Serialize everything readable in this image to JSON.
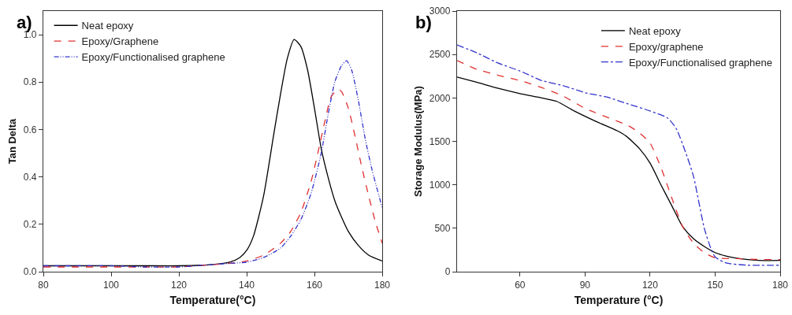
{
  "chart_data": [
    {
      "type": "line",
      "title": "a)",
      "xlabel": "Temperature(°C)",
      "ylabel": "Tan Delta",
      "xlim": [
        80,
        180
      ],
      "xticks": [
        80,
        100,
        120,
        140,
        160,
        180
      ],
      "ylim": [
        0,
        1.1
      ],
      "yticks": [
        {
          "value": 0,
          "label": "0.0"
        },
        {
          "value": 0.2,
          "label": "0.2"
        },
        {
          "value": 0.4,
          "label": "0.4"
        },
        {
          "value": 0.6,
          "label": "0.6"
        },
        {
          "value": 0.8,
          "label": "0.8"
        },
        {
          "value": 1.0,
          "label": "1.0"
        }
      ],
      "grid": false,
      "legend": "top left",
      "series": [
        {
          "name": "Neat epoxy",
          "color": "#000000",
          "line_style": "solid",
          "x": [
            80,
            90,
            100,
            110,
            120,
            130,
            135,
            138,
            140,
            142,
            145,
            148,
            150,
            152,
            154,
            156,
            158,
            160,
            162,
            164,
            166,
            168,
            170,
            173,
            176,
            180
          ],
          "values": [
            0.025,
            0.025,
            0.025,
            0.025,
            0.025,
            0.03,
            0.04,
            0.06,
            0.09,
            0.15,
            0.32,
            0.58,
            0.75,
            0.9,
            0.98,
            0.95,
            0.85,
            0.69,
            0.52,
            0.4,
            0.3,
            0.23,
            0.17,
            0.11,
            0.07,
            0.045
          ]
        },
        {
          "name": "Epoxy/Graphene",
          "color": "#e03030",
          "line_style": "dashed",
          "x": [
            80,
            90,
            100,
            110,
            120,
            130,
            135,
            140,
            145,
            150,
            153,
            156,
            159,
            161,
            163,
            165,
            167,
            168,
            170,
            172,
            174,
            176,
            178,
            180
          ],
          "values": [
            0.02,
            0.02,
            0.02,
            0.02,
            0.02,
            0.03,
            0.035,
            0.045,
            0.07,
            0.12,
            0.17,
            0.25,
            0.38,
            0.5,
            0.63,
            0.74,
            0.77,
            0.76,
            0.69,
            0.57,
            0.44,
            0.32,
            0.21,
            0.12
          ]
        },
        {
          "name": "Epoxy/Functionalised graphene",
          "color": "#3333cc",
          "line_style": "dashdotdot",
          "x": [
            80,
            90,
            100,
            110,
            120,
            130,
            135,
            140,
            145,
            150,
            153,
            156,
            159,
            162,
            164,
            166,
            168,
            169.5,
            171,
            173,
            175,
            177,
            180
          ],
          "values": [
            0.025,
            0.025,
            0.025,
            0.02,
            0.02,
            0.03,
            0.035,
            0.04,
            0.06,
            0.1,
            0.15,
            0.22,
            0.33,
            0.5,
            0.66,
            0.8,
            0.87,
            0.89,
            0.85,
            0.72,
            0.56,
            0.43,
            0.27
          ]
        }
      ]
    },
    {
      "type": "line",
      "title": "b)",
      "xlabel": "Temperature (°C)",
      "ylabel": "Storage Modulus(MPa)",
      "xlim": [
        31,
        180
      ],
      "xticks": [
        60,
        90,
        120,
        150,
        180
      ],
      "ylim": [
        0,
        3000
      ],
      "yticks": [
        0,
        500,
        1000,
        1500,
        2000,
        2500,
        3000
      ],
      "grid": false,
      "legend": "top right",
      "series": [
        {
          "name": "Neat epoxy",
          "color": "#000000",
          "line_style": "solid",
          "x": [
            31,
            40,
            50,
            60,
            70,
            77,
            85,
            95,
            105,
            109,
            115,
            120,
            125,
            130,
            135,
            140,
            145,
            150,
            155,
            160,
            170,
            180
          ],
          "values": [
            2240,
            2180,
            2110,
            2050,
            2000,
            1960,
            1850,
            1730,
            1620,
            1560,
            1420,
            1250,
            1000,
            760,
            520,
            380,
            290,
            220,
            180,
            155,
            130,
            130
          ]
        },
        {
          "name": "Epoxy/graphene",
          "color": "#e03030",
          "line_style": "dashed",
          "x": [
            31,
            40,
            50,
            60,
            70,
            80,
            90,
            100,
            110,
            115,
            120,
            125,
            130,
            135,
            140,
            145,
            150,
            160,
            170,
            180
          ],
          "values": [
            2430,
            2330,
            2260,
            2200,
            2120,
            2020,
            1880,
            1780,
            1680,
            1600,
            1480,
            1200,
            850,
            520,
            330,
            220,
            160,
            150,
            140,
            140
          ]
        },
        {
          "name": "Epoxy/Functionalised graphene",
          "color": "#3333cc",
          "line_style": "dashdot",
          "x": [
            31,
            40,
            50,
            60,
            70,
            80,
            90,
            100,
            110,
            120,
            128,
            132,
            136,
            140,
            145,
            148,
            150,
            155,
            165,
            180
          ],
          "values": [
            2610,
            2520,
            2400,
            2310,
            2200,
            2140,
            2060,
            2010,
            1930,
            1850,
            1770,
            1650,
            1400,
            1100,
            500,
            270,
            170,
            100,
            75,
            75
          ]
        }
      ]
    }
  ]
}
